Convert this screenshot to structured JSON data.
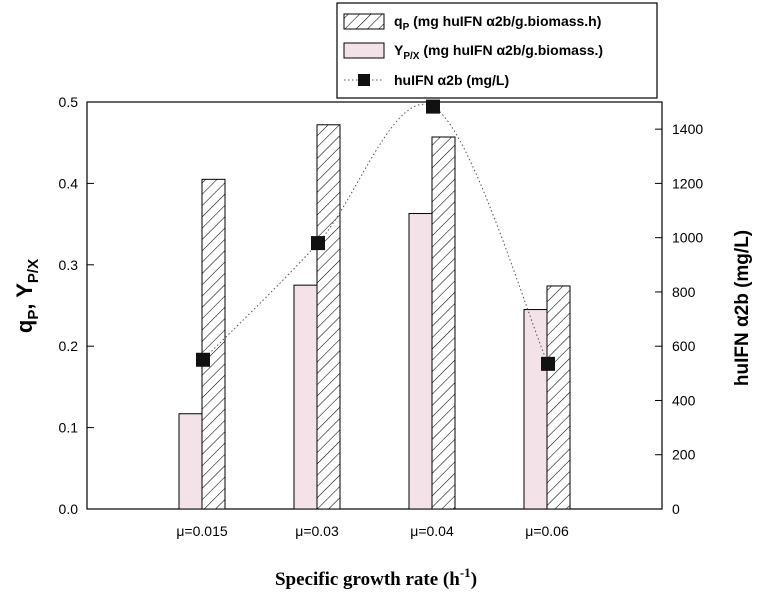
{
  "chart_data": {
    "type": "bar",
    "categories": [
      "μ=0.015",
      "μ=0.03",
      "μ=0.04",
      "μ=0.06"
    ],
    "xlabel": "Specific growth rate (h",
    "xlabel_sup": "-1",
    "xlabel_close": ")",
    "ylabel_left": {
      "q": "q",
      "q_sub": "P",
      "sep": ", Y",
      "y_sub": "P/X"
    },
    "ylabel_right": "huIFN α2b (mg/L)",
    "ylim_left": [
      0,
      0.5
    ],
    "ylim_right": [
      0,
      1500
    ],
    "yticks_left": [
      "0.0",
      "0.1",
      "0.2",
      "0.3",
      "0.4",
      "0.5"
    ],
    "yticks_right": [
      "0",
      "200",
      "400",
      "600",
      "800",
      "1000",
      "1200",
      "1400"
    ],
    "series": [
      {
        "name": "Y_P/X (mg huIFN α2b/g.biomass.)",
        "axis": "left",
        "style": "solid-fill",
        "color": "#f3e3e8",
        "values": [
          0.117,
          0.275,
          0.363,
          0.245
        ]
      },
      {
        "name": "q_P (mg huIFN α2b/g.biomass.h)",
        "axis": "left",
        "style": "hatched",
        "color": "#ffffff",
        "values": [
          0.405,
          0.472,
          0.457,
          0.274
        ]
      },
      {
        "name": "huIFN α2b (mg/L)",
        "axis": "right",
        "style": "dotted-line-square-markers",
        "color": "#000000",
        "values": [
          550,
          980,
          1483,
          535
        ]
      }
    ],
    "legend": {
      "placement": "top-right",
      "entries": [
        {
          "main": "q",
          "sub": "P",
          "rest": " (mg huIFN α2b/g.biomass.h)"
        },
        {
          "main": "Y",
          "sub": "P/X",
          "rest": " (mg huIFN  α2b/g.biomass.)"
        },
        {
          "main": "huIFN α2b (mg/L)",
          "sub": "",
          "rest": ""
        }
      ]
    },
    "grid": false
  }
}
